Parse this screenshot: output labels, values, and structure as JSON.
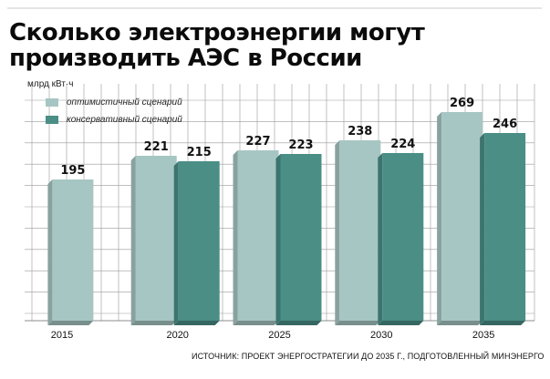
{
  "header": {
    "title_line1": "Сколько электроэнергии могут",
    "title_line2": "производить АЭС в России",
    "unit": "млрд кВт·ч"
  },
  "legend": {
    "optimistic": "оптимистичный сценарий",
    "conservative": "консервативный сценарий"
  },
  "source": "ИСТОЧНИК: ПРОЕКТ ЭНЕРГОСТРАТЕГИИ ДО 2035 Г., ПОДГОТОВЛЕННЫЙ МИНЭНЕРГО",
  "colors": {
    "optimistic": "#a6c6c3",
    "conservative": "#4a8e86",
    "grid": "#9a9a9a"
  },
  "chart_data": {
    "type": "bar",
    "categories": [
      "2015",
      "2020",
      "2025",
      "2030",
      "2035"
    ],
    "series": [
      {
        "name": "оптимистичный сценарий",
        "values": [
          195,
          221,
          227,
          238,
          269
        ]
      },
      {
        "name": "консервативный сценарий",
        "values": [
          null,
          215,
          223,
          224,
          246
        ]
      }
    ],
    "ylabel": "млрд кВт·ч",
    "grid": true,
    "legend_position": "top-left"
  }
}
